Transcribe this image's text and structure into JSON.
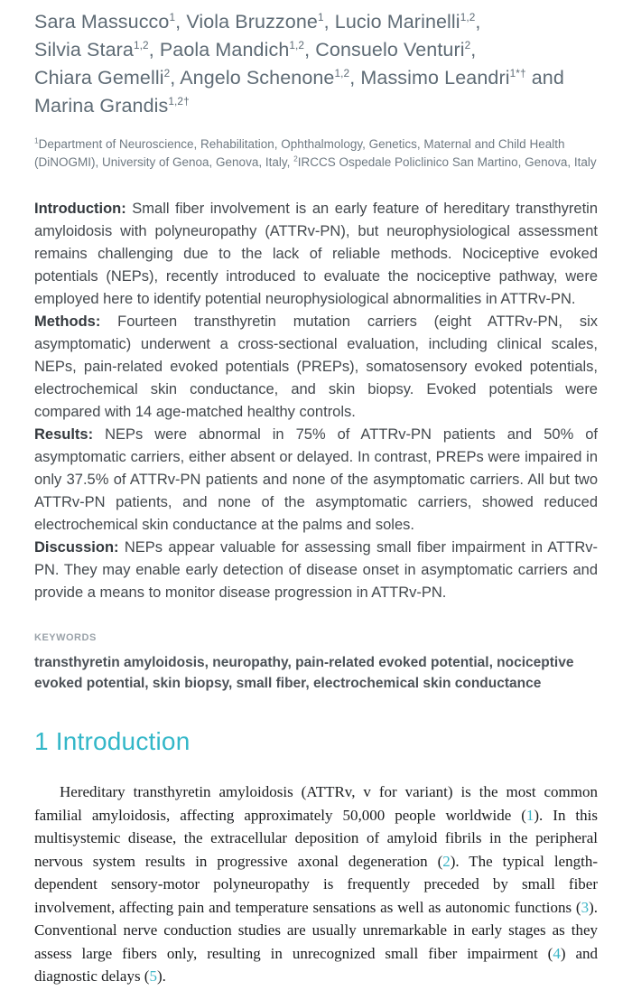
{
  "authors": {
    "list": [
      {
        "name": "Sara Massucco",
        "sup": "1",
        "tail": ", "
      },
      {
        "name": "Viola Bruzzone",
        "sup": "1",
        "tail": ", "
      },
      {
        "name": "Lucio Marinelli",
        "sup": "1,2",
        "tail": ", "
      },
      {
        "name": "Silvia Stara",
        "sup": "1,2",
        "tail": ", "
      },
      {
        "name": "Paola Mandich",
        "sup": "1,2",
        "tail": ", "
      },
      {
        "name": "Consuelo Venturi",
        "sup": "2",
        "tail": ", "
      },
      {
        "name": "Chiara Gemelli",
        "sup": "2",
        "tail": ", "
      },
      {
        "name": "Angelo Schenone",
        "sup": "1,2",
        "tail": ", "
      },
      {
        "name": "Massimo Leandri",
        "sup": "1*†",
        "tail": " and "
      },
      {
        "name": "Marina Grandis",
        "sup": "1,2†",
        "tail": ""
      }
    ]
  },
  "affiliations": {
    "segments": [
      {
        "sup": "1",
        "text": "Department of Neuroscience, Rehabilitation, Ophthalmology, Genetics, Maternal and Child Health (DiNOGMI), University of Genoa, Genova, Italy, "
      },
      {
        "sup": "2",
        "text": "IRCCS Ospedale Policlinico San Martino, Genova, Italy"
      }
    ]
  },
  "abstract": {
    "paragraphs": [
      {
        "label": "Introduction:",
        "text": "Small fiber involvement is an early feature of hereditary transthyretin amyloidosis with polyneuropathy (ATTRv-PN), but neurophysiological assessment remains challenging due to the lack of reliable methods. Nociceptive evoked potentials (NEPs), recently introduced to evaluate the nociceptive pathway, were employed here to identify potential neurophysiological abnormalities in ATTRv-PN."
      },
      {
        "label": "Methods:",
        "text": "Fourteen transthyretin mutation carriers (eight ATTRv-PN, six asymptomatic) underwent a cross-sectional evaluation, including clinical scales, NEPs, pain-related evoked potentials (PREPs), somatosensory evoked potentials, electrochemical skin conductance, and skin biopsy. Evoked potentials were compared with 14 age-matched healthy controls."
      },
      {
        "label": "Results:",
        "text": "NEPs were abnormal in 75% of ATTRv-PN patients and 50% of asymptomatic carriers, either absent or delayed. In contrast, PREPs were impaired in only 37.5% of ATTRv-PN patients and none of the asymptomatic carriers. All but two ATTRv-PN patients, and none of the asymptomatic carriers, showed reduced electrochemical skin conductance at the palms and soles."
      },
      {
        "label": "Discussion:",
        "text": "NEPs appear valuable for assessing small fiber impairment in ATTRv-PN. They may enable early detection of disease onset in asymptomatic carriers and provide a means to monitor disease progression in ATTRv-PN."
      }
    ]
  },
  "keywords": {
    "label": "KEYWORDS",
    "text": "transthyretin amyloidosis, neuropathy, pain-related evoked potential, nociceptive evoked potential, skin biopsy, small fiber, electrochemical skin conductance"
  },
  "section": {
    "heading": "1 Introduction"
  },
  "intro": {
    "segments": [
      {
        "text": "Hereditary transthyretin amyloidosis (ATTRv, v for variant) is the most common familial amyloidosis, affecting approximately 50,000 people worldwide ("
      },
      {
        "cite": "1"
      },
      {
        "text": "). In this multisystemic disease, the extracellular deposition of amyloid fibrils in the peripheral nervous system results in progressive axonal degeneration ("
      },
      {
        "cite": "2"
      },
      {
        "text": "). The typical length-dependent sensory-motor polyneuropathy is frequently preceded by small fiber involvement, affecting pain and temperature sensations as well as autonomic functions ("
      },
      {
        "cite": "3"
      },
      {
        "text": "). Conventional nerve conduction studies are usually unremarkable in early stages as they assess large fibers only, resulting in unrecognized small fiber impairment ("
      },
      {
        "cite": "4"
      },
      {
        "text": ") and diagnostic delays ("
      },
      {
        "cite": "5"
      },
      {
        "text": ")."
      }
    ]
  },
  "colors": {
    "accent_teal": "#33b7c8",
    "cite_teal": "#3ab5c6",
    "author_gray": "#5e6b75",
    "body_black": "#1a1c1e"
  }
}
